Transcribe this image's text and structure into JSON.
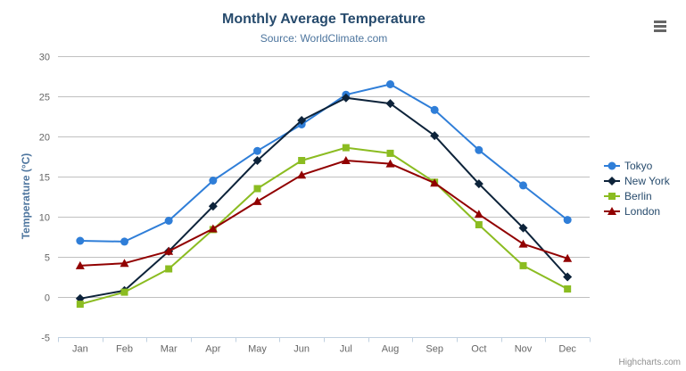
{
  "header": {
    "title": "Monthly Average Temperature",
    "subtitle": "Source: WorldClimate.com"
  },
  "export_button": {
    "icon": "hamburger-menu-icon"
  },
  "credits": {
    "label": "Highcharts.com"
  },
  "chart_data": {
    "type": "line",
    "title": "Monthly Average Temperature",
    "subtitle": "Source: WorldClimate.com",
    "categories": [
      "Jan",
      "Feb",
      "Mar",
      "Apr",
      "May",
      "Jun",
      "Jul",
      "Aug",
      "Sep",
      "Oct",
      "Nov",
      "Dec"
    ],
    "series": [
      {
        "name": "Tokyo",
        "color": "#2f7ed8",
        "marker": "circle",
        "values": [
          7.0,
          6.9,
          9.5,
          14.5,
          18.2,
          21.5,
          25.2,
          26.5,
          23.3,
          18.3,
          13.9,
          9.6
        ]
      },
      {
        "name": "New York",
        "color": "#0d233a",
        "marker": "diamond",
        "values": [
          -0.2,
          0.8,
          5.7,
          11.3,
          17.0,
          22.0,
          24.8,
          24.1,
          20.1,
          14.1,
          8.6,
          2.5
        ]
      },
      {
        "name": "Berlin",
        "color": "#8bbc21",
        "marker": "square",
        "values": [
          -0.9,
          0.6,
          3.5,
          8.4,
          13.5,
          17.0,
          18.6,
          17.9,
          14.3,
          9.0,
          3.9,
          1.0
        ]
      },
      {
        "name": "London",
        "color": "#910000",
        "marker": "triangle",
        "values": [
          3.9,
          4.2,
          5.7,
          8.5,
          11.9,
          15.2,
          17.0,
          16.6,
          14.2,
          10.3,
          6.6,
          4.8
        ]
      }
    ],
    "xlabel": "",
    "ylabel": "Temperature (°C)",
    "ylim": [
      -5,
      30
    ],
    "ytick_step": 5,
    "yticks": [
      -5,
      0,
      5,
      10,
      15,
      20,
      25,
      30
    ],
    "grid": true,
    "legend_position": "right",
    "colors": {
      "grid_line": "#C0C0C0",
      "axis_line": "#C0D0E0",
      "tick_label": "#666666",
      "title_text": "#274b6d",
      "subtitle_text": "#4d759e"
    }
  }
}
